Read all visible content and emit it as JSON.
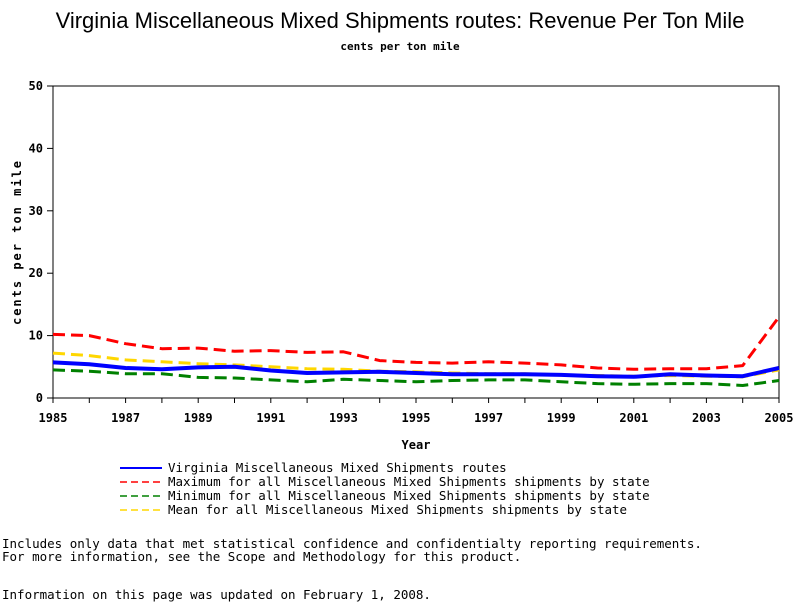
{
  "chart_data": {
    "type": "line",
    "title": "Virginia Miscellaneous Mixed Shipments routes: Revenue Per Ton Mile",
    "subtitle": "cents per ton mile",
    "xlabel": "Year",
    "ylabel": "cents per ton mile",
    "xlim": [
      1985,
      2005
    ],
    "ylim": [
      0,
      50
    ],
    "x_ticks": [
      "1985",
      "1987",
      "1989",
      "1991",
      "1993",
      "1995",
      "1997",
      "1999",
      "2001",
      "2003",
      "2005"
    ],
    "y_ticks": [
      "0",
      "10",
      "20",
      "30",
      "40",
      "50"
    ],
    "grid": false,
    "legend_position": "bottom",
    "x": [
      1985,
      1986,
      1987,
      1988,
      1989,
      1990,
      1991,
      1992,
      1993,
      1994,
      1995,
      1996,
      1997,
      1998,
      1999,
      2000,
      2001,
      2002,
      2003,
      2004,
      2005
    ],
    "series": [
      {
        "name": "Virginia Miscellaneous Mixed Shipments routes",
        "color": "#0000ff",
        "style": "solid",
        "values": [
          5.7,
          5.4,
          4.8,
          4.6,
          4.9,
          5.0,
          4.4,
          4.0,
          4.1,
          4.2,
          4.0,
          3.8,
          3.8,
          3.8,
          3.7,
          3.5,
          3.4,
          3.8,
          3.6,
          3.5,
          4.8
        ]
      },
      {
        "name": "Maximum for all Miscellaneous Mixed Shipments shipments by state",
        "color": "#ff0000",
        "style": "dashed",
        "values": [
          10.2,
          10.0,
          8.7,
          7.9,
          8.0,
          7.5,
          7.6,
          7.3,
          7.4,
          6.0,
          5.7,
          5.6,
          5.8,
          5.6,
          5.3,
          4.8,
          4.6,
          4.7,
          4.7,
          5.2,
          13.0
        ]
      },
      {
        "name": "Minimum for all Miscellaneous Mixed Shipments shipments by state",
        "color": "#008000",
        "style": "dashed",
        "values": [
          4.5,
          4.3,
          3.9,
          3.9,
          3.3,
          3.2,
          2.9,
          2.6,
          3.0,
          2.8,
          2.6,
          2.8,
          2.9,
          2.9,
          2.6,
          2.3,
          2.2,
          2.3,
          2.3,
          2.0,
          2.8
        ]
      },
      {
        "name": "Mean for all Miscellaneous Mixed Shipments shipments by state",
        "color": "#ffd700",
        "style": "dashed",
        "values": [
          7.2,
          6.8,
          6.1,
          5.8,
          5.5,
          5.3,
          5.0,
          4.7,
          4.6,
          4.3,
          4.2,
          4.0,
          3.9,
          3.9,
          3.7,
          3.6,
          3.5,
          3.6,
          3.5,
          3.4,
          4.5
        ]
      }
    ]
  },
  "footnotes": {
    "line1": "Includes only data that met statistical confidence and confidentialty reporting requirements.",
    "line2": "For more information, see the Scope and Methodology for this product.",
    "line3": "Information on this page was updated on February 1, 2008."
  }
}
